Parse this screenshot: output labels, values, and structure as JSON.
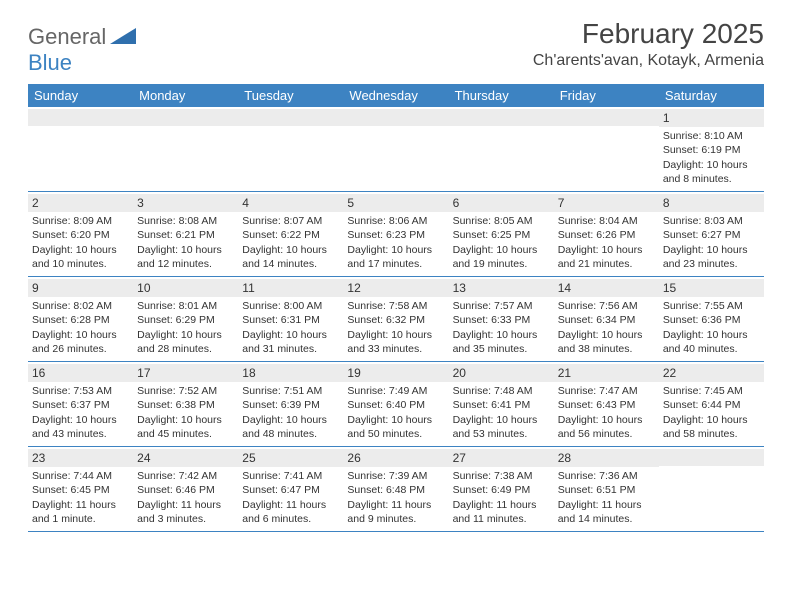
{
  "logo": {
    "part1": "General",
    "part2": "Blue",
    "shape_color": "#2f6fad"
  },
  "title": "February 2025",
  "location": "Ch'arents'avan, Kotayk, Armenia",
  "header_bg": "#3d83c2",
  "header_text": "#ffffff",
  "border_color": "#3d83c2",
  "daynum_bg": "#ececec",
  "text_color": "#333333",
  "day_names": [
    "Sunday",
    "Monday",
    "Tuesday",
    "Wednesday",
    "Thursday",
    "Friday",
    "Saturday"
  ],
  "weeks": [
    [
      null,
      null,
      null,
      null,
      null,
      null,
      {
        "n": "1",
        "sr": "Sunrise: 8:10 AM",
        "ss": "Sunset: 6:19 PM",
        "dl1": "Daylight: 10 hours",
        "dl2": "and 8 minutes."
      }
    ],
    [
      {
        "n": "2",
        "sr": "Sunrise: 8:09 AM",
        "ss": "Sunset: 6:20 PM",
        "dl1": "Daylight: 10 hours",
        "dl2": "and 10 minutes."
      },
      {
        "n": "3",
        "sr": "Sunrise: 8:08 AM",
        "ss": "Sunset: 6:21 PM",
        "dl1": "Daylight: 10 hours",
        "dl2": "and 12 minutes."
      },
      {
        "n": "4",
        "sr": "Sunrise: 8:07 AM",
        "ss": "Sunset: 6:22 PM",
        "dl1": "Daylight: 10 hours",
        "dl2": "and 14 minutes."
      },
      {
        "n": "5",
        "sr": "Sunrise: 8:06 AM",
        "ss": "Sunset: 6:23 PM",
        "dl1": "Daylight: 10 hours",
        "dl2": "and 17 minutes."
      },
      {
        "n": "6",
        "sr": "Sunrise: 8:05 AM",
        "ss": "Sunset: 6:25 PM",
        "dl1": "Daylight: 10 hours",
        "dl2": "and 19 minutes."
      },
      {
        "n": "7",
        "sr": "Sunrise: 8:04 AM",
        "ss": "Sunset: 6:26 PM",
        "dl1": "Daylight: 10 hours",
        "dl2": "and 21 minutes."
      },
      {
        "n": "8",
        "sr": "Sunrise: 8:03 AM",
        "ss": "Sunset: 6:27 PM",
        "dl1": "Daylight: 10 hours",
        "dl2": "and 23 minutes."
      }
    ],
    [
      {
        "n": "9",
        "sr": "Sunrise: 8:02 AM",
        "ss": "Sunset: 6:28 PM",
        "dl1": "Daylight: 10 hours",
        "dl2": "and 26 minutes."
      },
      {
        "n": "10",
        "sr": "Sunrise: 8:01 AM",
        "ss": "Sunset: 6:29 PM",
        "dl1": "Daylight: 10 hours",
        "dl2": "and 28 minutes."
      },
      {
        "n": "11",
        "sr": "Sunrise: 8:00 AM",
        "ss": "Sunset: 6:31 PM",
        "dl1": "Daylight: 10 hours",
        "dl2": "and 31 minutes."
      },
      {
        "n": "12",
        "sr": "Sunrise: 7:58 AM",
        "ss": "Sunset: 6:32 PM",
        "dl1": "Daylight: 10 hours",
        "dl2": "and 33 minutes."
      },
      {
        "n": "13",
        "sr": "Sunrise: 7:57 AM",
        "ss": "Sunset: 6:33 PM",
        "dl1": "Daylight: 10 hours",
        "dl2": "and 35 minutes."
      },
      {
        "n": "14",
        "sr": "Sunrise: 7:56 AM",
        "ss": "Sunset: 6:34 PM",
        "dl1": "Daylight: 10 hours",
        "dl2": "and 38 minutes."
      },
      {
        "n": "15",
        "sr": "Sunrise: 7:55 AM",
        "ss": "Sunset: 6:36 PM",
        "dl1": "Daylight: 10 hours",
        "dl2": "and 40 minutes."
      }
    ],
    [
      {
        "n": "16",
        "sr": "Sunrise: 7:53 AM",
        "ss": "Sunset: 6:37 PM",
        "dl1": "Daylight: 10 hours",
        "dl2": "and 43 minutes."
      },
      {
        "n": "17",
        "sr": "Sunrise: 7:52 AM",
        "ss": "Sunset: 6:38 PM",
        "dl1": "Daylight: 10 hours",
        "dl2": "and 45 minutes."
      },
      {
        "n": "18",
        "sr": "Sunrise: 7:51 AM",
        "ss": "Sunset: 6:39 PM",
        "dl1": "Daylight: 10 hours",
        "dl2": "and 48 minutes."
      },
      {
        "n": "19",
        "sr": "Sunrise: 7:49 AM",
        "ss": "Sunset: 6:40 PM",
        "dl1": "Daylight: 10 hours",
        "dl2": "and 50 minutes."
      },
      {
        "n": "20",
        "sr": "Sunrise: 7:48 AM",
        "ss": "Sunset: 6:41 PM",
        "dl1": "Daylight: 10 hours",
        "dl2": "and 53 minutes."
      },
      {
        "n": "21",
        "sr": "Sunrise: 7:47 AM",
        "ss": "Sunset: 6:43 PM",
        "dl1": "Daylight: 10 hours",
        "dl2": "and 56 minutes."
      },
      {
        "n": "22",
        "sr": "Sunrise: 7:45 AM",
        "ss": "Sunset: 6:44 PM",
        "dl1": "Daylight: 10 hours",
        "dl2": "and 58 minutes."
      }
    ],
    [
      {
        "n": "23",
        "sr": "Sunrise: 7:44 AM",
        "ss": "Sunset: 6:45 PM",
        "dl1": "Daylight: 11 hours",
        "dl2": "and 1 minute."
      },
      {
        "n": "24",
        "sr": "Sunrise: 7:42 AM",
        "ss": "Sunset: 6:46 PM",
        "dl1": "Daylight: 11 hours",
        "dl2": "and 3 minutes."
      },
      {
        "n": "25",
        "sr": "Sunrise: 7:41 AM",
        "ss": "Sunset: 6:47 PM",
        "dl1": "Daylight: 11 hours",
        "dl2": "and 6 minutes."
      },
      {
        "n": "26",
        "sr": "Sunrise: 7:39 AM",
        "ss": "Sunset: 6:48 PM",
        "dl1": "Daylight: 11 hours",
        "dl2": "and 9 minutes."
      },
      {
        "n": "27",
        "sr": "Sunrise: 7:38 AM",
        "ss": "Sunset: 6:49 PM",
        "dl1": "Daylight: 11 hours",
        "dl2": "and 11 minutes."
      },
      {
        "n": "28",
        "sr": "Sunrise: 7:36 AM",
        "ss": "Sunset: 6:51 PM",
        "dl1": "Daylight: 11 hours",
        "dl2": "and 14 minutes."
      },
      null
    ]
  ]
}
